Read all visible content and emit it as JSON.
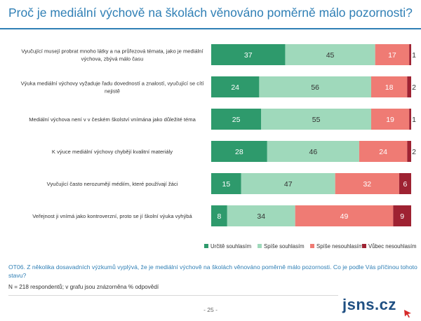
{
  "header": {
    "title": "Proč je mediální výchově na školách věnováno poměrně málo pozornosti?"
  },
  "chart_data": {
    "type": "bar",
    "orientation": "horizontal",
    "stacked": true,
    "unit": "%",
    "categories": [
      "Vyučující musejí probrat mnoho látky a na průřezová témata, jako je mediální výchova, zbývá málo času",
      "Výuka mediální výchovy vyžaduje řadu dovedností a znalostí, vyučující se cítí nejistě",
      "Mediální výchova není v v českém školství vnímána jako důležité téma",
      "K výuce mediální výchovy chybějí kvalitní materiály",
      "Vyučující často nerozumějí médiím, které používají žáci",
      "Veřejnost ji vnímá jako kontroverzní, proto se jí školní výuka vyhýbá"
    ],
    "series": [
      {
        "name": "Určitě souhlasím",
        "color": "#2e9a6c",
        "label_color": "#ffffff",
        "values": [
          37,
          24,
          25,
          28,
          15,
          8
        ]
      },
      {
        "name": "Spíše souhlasím",
        "color": "#9fd9bb",
        "label_color": "#333333",
        "values": [
          45,
          56,
          55,
          46,
          47,
          34
        ]
      },
      {
        "name": "Spíše nesouhlasím",
        "color": "#ef7b74",
        "label_color": "#ffffff",
        "values": [
          17,
          18,
          19,
          24,
          32,
          49
        ]
      },
      {
        "name": "Vůbec nesouhlasím",
        "color": "#9e2232",
        "label_color": "#ffffff",
        "values": [
          1,
          2,
          1,
          2,
          6,
          9
        ]
      }
    ],
    "xlim": [
      0,
      100
    ],
    "legend_position": "bottom-right",
    "grid": false
  },
  "footer": {
    "question": "OT06. Z několika dosavadních výzkumů vyplývá, že je mediální výchově na školách věnováno poměrně málo pozornosti. Co je podle Vás příčinou tohoto stavu?",
    "sample": "N = 218 respondentů; v grafu jsou znázorněna % odpovědí",
    "page": "- 25 -",
    "logo": "jsns.cz"
  }
}
